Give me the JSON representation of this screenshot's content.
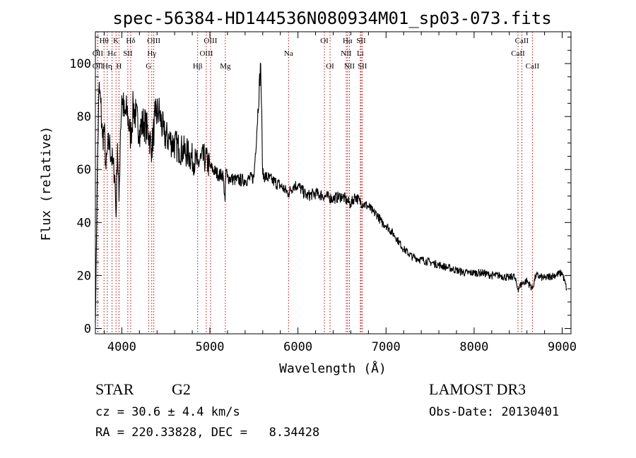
{
  "chart_data": {
    "type": "line",
    "title": "spec-56384-HD144536N080934M01_sp03-073.fits",
    "xlabel": "Wavelength (Å)",
    "ylabel": "Flux (relative)",
    "xlim": [
      3700,
      9100
    ],
    "ylim": [
      -2,
      112
    ],
    "xticks": [
      4000,
      5000,
      6000,
      7000,
      8000,
      9000
    ],
    "yticks": [
      0,
      20,
      40,
      60,
      80,
      100
    ],
    "xtick_labels": [
      "4000",
      "5000",
      "6000",
      "7000",
      "8000",
      "9000"
    ],
    "ytick_labels": [
      "0",
      "20",
      "40",
      "60",
      "80",
      "100"
    ],
    "series": [
      {
        "name": "flux",
        "x": [
          3700,
          3720,
          3740,
          3760,
          3780,
          3800,
          3820,
          3840,
          3860,
          3880,
          3900,
          3920,
          3935,
          3950,
          3968,
          3985,
          4000,
          4030,
          4060,
          4101,
          4130,
          4160,
          4200,
          4250,
          4300,
          4340,
          4380,
          4420,
          4480,
          4550,
          4650,
          4750,
          4861,
          4900,
          4950,
          5000,
          5100,
          5150,
          5172,
          5183,
          5200,
          5300,
          5400,
          5500,
          5577,
          5600,
          5700,
          5800,
          5890,
          5950,
          6000,
          6100,
          6200,
          6300,
          6400,
          6500,
          6563,
          6600,
          6650,
          6700,
          6750,
          6800,
          6850,
          6900,
          6950,
          7000,
          7100,
          7200,
          7300,
          7400,
          7500,
          7600,
          7700,
          7800,
          7900,
          8000,
          8100,
          8200,
          8300,
          8400,
          8450,
          8498,
          8542,
          8600,
          8662,
          8700,
          8800,
          8900,
          9000,
          9050
        ],
        "y": [
          2,
          55,
          90,
          85,
          72,
          75,
          60,
          68,
          70,
          65,
          62,
          58,
          42,
          70,
          48,
          75,
          88,
          80,
          82,
          72,
          84,
          80,
          75,
          78,
          74,
          68,
          80,
          82,
          73,
          71,
          68,
          66,
          62,
          64,
          64,
          61,
          58,
          58,
          48,
          60,
          57,
          56,
          56,
          57,
          100,
          58,
          56,
          54,
          51,
          54,
          54,
          50,
          51,
          50,
          49,
          50,
          48,
          47,
          50,
          48,
          47,
          46,
          44,
          43,
          40,
          39,
          35,
          30,
          27,
          26,
          25,
          24,
          23,
          22,
          21,
          21,
          21,
          20,
          20,
          19,
          20,
          15,
          17,
          18,
          15,
          20,
          19,
          20,
          21,
          15
        ]
      }
    ],
    "lines": [
      {
        "name": "OII",
        "wavelength": 3727,
        "row": 2
      },
      {
        "name": "OII",
        "wavelength": 3727,
        "row": 3
      },
      {
        "name": "Hθ",
        "wavelength": 3798,
        "row": 1
      },
      {
        "name": "Hη",
        "wavelength": 3835,
        "row": 3
      },
      {
        "name": "Hε",
        "wavelength": 3889,
        "row": 2
      },
      {
        "name": "K",
        "wavelength": 3934,
        "row": 1
      },
      {
        "name": "H",
        "wavelength": 3968,
        "row": 3
      },
      {
        "name": "SII",
        "wavelength": 4068,
        "row": 2
      },
      {
        "name": "Hδ",
        "wavelength": 4101,
        "row": 1
      },
      {
        "name": "OIII",
        "wavelength": 4363,
        "row": 1
      },
      {
        "name": "Hγ",
        "wavelength": 4340,
        "row": 2
      },
      {
        "name": "G",
        "wavelength": 4304,
        "row": 3
      },
      {
        "name": "Hβ",
        "wavelength": 4861,
        "row": 3
      },
      {
        "name": "OIII",
        "wavelength": 4959,
        "row": 2
      },
      {
        "name": "OIII",
        "wavelength": 5007,
        "row": 1
      },
      {
        "name": "Mg",
        "wavelength": 5175,
        "row": 3
      },
      {
        "name": "Na",
        "wavelength": 5893,
        "row": 2
      },
      {
        "name": "OI",
        "wavelength": 6300,
        "row": 1
      },
      {
        "name": "OI",
        "wavelength": 6364,
        "row": 3
      },
      {
        "name": "NII",
        "wavelength": 6548,
        "row": 2
      },
      {
        "name": "NII",
        "wavelength": 6584,
        "row": 3
      },
      {
        "name": "Hα",
        "wavelength": 6563,
        "row": 1
      },
      {
        "name": "SII",
        "wavelength": 6717,
        "row": 1
      },
      {
        "name": "Li",
        "wavelength": 6708,
        "row": 2
      },
      {
        "name": "SII",
        "wavelength": 6731,
        "row": 3
      },
      {
        "name": "CaII",
        "wavelength": 8498,
        "row": 2
      },
      {
        "name": "CaII",
        "wavelength": 8542,
        "row": 1
      },
      {
        "name": "CaII",
        "wavelength": 8662,
        "row": 3
      }
    ]
  },
  "info": {
    "class": "STAR",
    "subclass": "G2",
    "survey": "LAMOST DR3",
    "cz": "cz = 30.6 ± 4.4 km/s",
    "obs_date": "Obs-Date: 20130401",
    "coords": "RA = 220.33828, DEC =   8.34428"
  }
}
